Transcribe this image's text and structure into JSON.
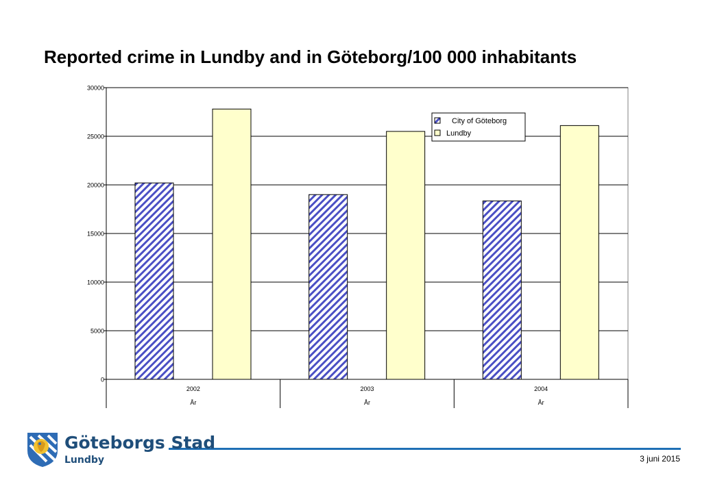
{
  "title": "Reported crime in Lundby and in Göteborg/100 000 inhabitants",
  "chart_data": {
    "type": "bar",
    "categories": [
      "2002",
      "2003",
      "2004"
    ],
    "category_group_labels": [
      "År",
      "År",
      "År"
    ],
    "series": [
      {
        "name": "City of Göteborg",
        "values": [
          20200,
          19000,
          18350
        ],
        "fill": "hatched",
        "color": "#4a4fc4"
      },
      {
        "name": "Lundby",
        "values": [
          27800,
          25500,
          26100
        ],
        "fill": "solid",
        "color": "#ffffcc"
      }
    ],
    "yticks": [
      0,
      5000,
      10000,
      15000,
      20000,
      25000,
      30000
    ],
    "ylim": [
      0,
      30000
    ],
    "grid": true,
    "legend_position": "top-right"
  },
  "footer": {
    "date": "3 juni 2015",
    "logo_text": "Göteborgs Stad",
    "logo_subtitle": "Lundby",
    "rule_color": "#1f6fb5"
  }
}
